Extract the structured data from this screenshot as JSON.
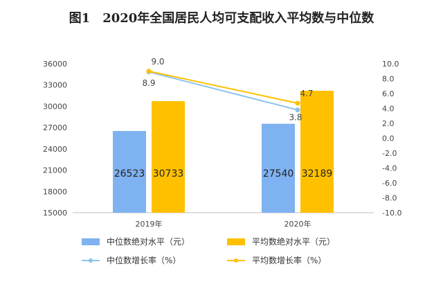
{
  "title": {
    "fig": "图1",
    "text": "2020年全国居民人均可支配收入平均数与中位数"
  },
  "chart_data": {
    "type": "bar",
    "categories": [
      "2019年",
      "2020年"
    ],
    "y_left": {
      "min": 15000,
      "max": 36000,
      "ticks": [
        "15000",
        "18000",
        "21000",
        "24000",
        "27000",
        "30000",
        "33000",
        "36000"
      ]
    },
    "y_right": {
      "min": -10,
      "max": 10,
      "ticks": [
        "-10.0",
        "-8.0",
        "-6.0",
        "-4.0",
        "-2.0",
        "0.0",
        "2.0",
        "4.0",
        "6.0",
        "8.0",
        "10.0"
      ]
    },
    "series": [
      {
        "name": "中位数绝对水平（元）",
        "type": "bar",
        "axis": "left",
        "color": "#7fb2f0",
        "values": [
          26523,
          27540
        ],
        "labels": [
          "26523",
          "27540"
        ]
      },
      {
        "name": "平均数绝对水平（元）",
        "type": "bar",
        "axis": "left",
        "color": "#ffc000",
        "values": [
          30733,
          32189
        ],
        "labels": [
          "30733",
          "32189"
        ]
      },
      {
        "name": "中位数增长率（%）",
        "type": "line",
        "axis": "right",
        "color": "#8dc3ea",
        "values": [
          8.9,
          3.8
        ],
        "labels": [
          "8.9",
          "3.8"
        ]
      },
      {
        "name": "平均数增长率（%）",
        "type": "line",
        "axis": "right",
        "color": "#ffc000",
        "values": [
          9.0,
          4.7
        ],
        "labels": [
          "9.0",
          "4.7"
        ]
      }
    ],
    "grid": false,
    "legend": "bottom"
  }
}
